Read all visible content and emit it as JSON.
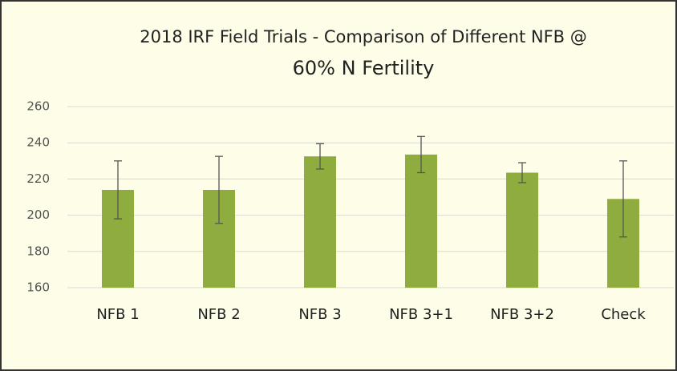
{
  "chart_data": {
    "type": "bar",
    "title": "2018 IRF Field Trials - Comparison of Different NFB @",
    "subtitle": "60% N Fertility",
    "categories": [
      "NFB 1",
      "NFB 2",
      "NFB 3",
      "NFB 3+1",
      "NFB 3+2",
      "Check"
    ],
    "values": [
      214,
      214,
      232.5,
      233.5,
      223.5,
      209
    ],
    "errors": [
      16,
      18.5,
      7,
      10,
      5.5,
      21
    ],
    "color": "#8fac3e",
    "ylim": [
      160,
      260
    ],
    "yticks": [
      160,
      180,
      200,
      220,
      240,
      260
    ],
    "grid": true
  }
}
